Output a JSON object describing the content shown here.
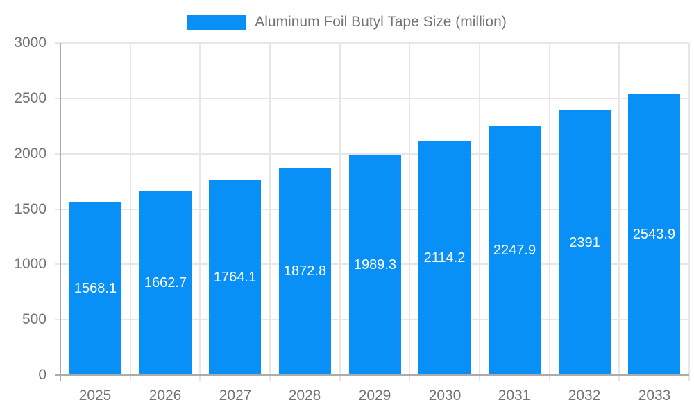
{
  "chart_data": {
    "type": "bar",
    "title": "Aluminum Foil Butyl Tape Size (million)",
    "categories": [
      "2025",
      "2026",
      "2027",
      "2028",
      "2029",
      "2030",
      "2031",
      "2032",
      "2033"
    ],
    "values": [
      1568.1,
      1662.7,
      1764.1,
      1872.8,
      1989.3,
      2114.2,
      2247.9,
      2391,
      2543.9
    ],
    "xlabel": "",
    "ylabel": "",
    "ylim": [
      0,
      3000
    ],
    "yticks": [
      0,
      500,
      1000,
      1500,
      2000,
      2500,
      3000
    ],
    "grid": true,
    "legend_position": "top-center",
    "value_labels": "centered-inside-bars",
    "colors": {
      "bar": "#0990f6",
      "value_label": "#ffffff",
      "axis_text": "#737373",
      "gridline": "#e6e6e6",
      "axis_line": "#ababab",
      "background": "#ffffff"
    }
  }
}
